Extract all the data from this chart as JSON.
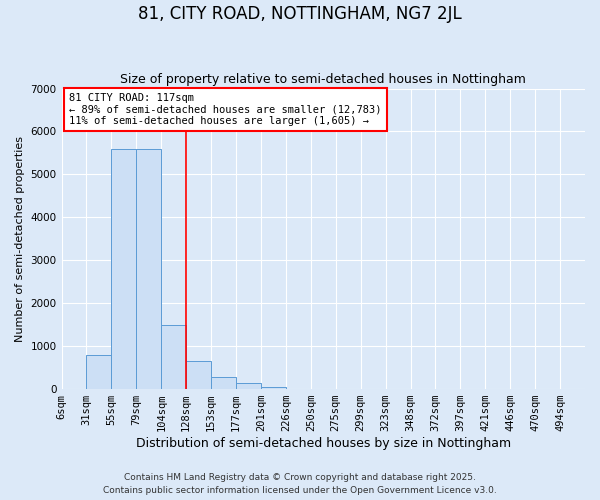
{
  "title": "81, CITY ROAD, NOTTINGHAM, NG7 2JL",
  "subtitle": "Size of property relative to semi-detached houses in Nottingham",
  "xlabel": "Distribution of semi-detached houses by size in Nottingham",
  "ylabel": "Number of semi-detached properties",
  "bar_labels": [
    "6sqm",
    "31sqm",
    "55sqm",
    "79sqm",
    "104sqm",
    "128sqm",
    "153sqm",
    "177sqm",
    "201sqm",
    "226sqm",
    "250sqm",
    "275sqm",
    "299sqm",
    "323sqm",
    "348sqm",
    "372sqm",
    "397sqm",
    "421sqm",
    "446sqm",
    "470sqm",
    "494sqm"
  ],
  "bar_values": [
    10,
    800,
    5600,
    5600,
    1500,
    650,
    280,
    140,
    50,
    10,
    5,
    0,
    0,
    0,
    0,
    0,
    0,
    0,
    0,
    0,
    0
  ],
  "bar_color": "#ccdff5",
  "bar_edgecolor": "#5b9bd5",
  "vline_x": 5.0,
  "vline_color": "red",
  "annotation_text": "81 CITY ROAD: 117sqm\n← 89% of semi-detached houses are smaller (12,783)\n11% of semi-detached houses are larger (1,605) →",
  "annotation_box_edgecolor": "red",
  "annotation_box_facecolor": "white",
  "ylim": [
    0,
    7000
  ],
  "yticks": [
    0,
    1000,
    2000,
    3000,
    4000,
    5000,
    6000,
    7000
  ],
  "footer1": "Contains HM Land Registry data © Crown copyright and database right 2025.",
  "footer2": "Contains public sector information licensed under the Open Government Licence v3.0.",
  "background_color": "#dce9f8",
  "title_fontsize": 12,
  "subtitle_fontsize": 9,
  "xlabel_fontsize": 9,
  "ylabel_fontsize": 8,
  "tick_fontsize": 7.5,
  "annotation_fontsize": 7.5,
  "footer_fontsize": 6.5
}
